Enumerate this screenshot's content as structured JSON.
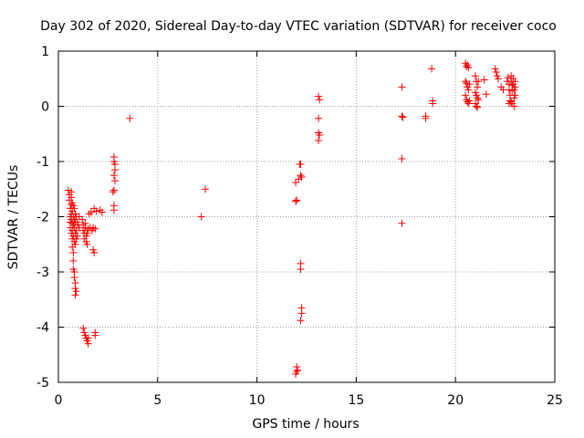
{
  "chart_data": {
    "type": "scatter",
    "title": "Day 302 of 2020, Sidereal Day-to-day VTEC variation (SDTVAR) for receiver coco",
    "xlabel": "GPS time / hours",
    "ylabel": "SDTVAR / TECUs",
    "xlim": [
      0,
      25
    ],
    "ylim": [
      -5,
      1
    ],
    "xticks": [
      0,
      5,
      10,
      15,
      20,
      25
    ],
    "yticks": [
      -5,
      -4,
      -3,
      -2,
      -1,
      0,
      1
    ],
    "grid": true,
    "marker": "+",
    "series": [
      {
        "name": "SDTVAR",
        "color": "#ff0000",
        "points": [
          [
            0.5,
            -1.52
          ],
          [
            0.55,
            -1.6
          ],
          [
            0.55,
            -1.7
          ],
          [
            0.6,
            -1.85
          ],
          [
            0.6,
            -2.0
          ],
          [
            0.6,
            -2.1
          ],
          [
            0.6,
            -2.2
          ],
          [
            0.65,
            -1.55
          ],
          [
            0.65,
            -1.65
          ],
          [
            0.65,
            -1.78
          ],
          [
            0.65,
            -1.95
          ],
          [
            0.65,
            -2.05
          ],
          [
            0.65,
            -2.3
          ],
          [
            0.7,
            -1.75
          ],
          [
            0.7,
            -1.9
          ],
          [
            0.7,
            -2.12
          ],
          [
            0.7,
            -2.25
          ],
          [
            0.7,
            -2.4
          ],
          [
            0.7,
            -2.55
          ],
          [
            0.75,
            -1.8
          ],
          [
            0.75,
            -2.0
          ],
          [
            0.75,
            -2.15
          ],
          [
            0.75,
            -2.35
          ],
          [
            0.75,
            -2.65
          ],
          [
            0.75,
            -2.8
          ],
          [
            0.75,
            -2.95
          ],
          [
            0.8,
            -1.85
          ],
          [
            0.8,
            -2.05
          ],
          [
            0.8,
            -2.2
          ],
          [
            0.8,
            -2.45
          ],
          [
            0.8,
            -3.0
          ],
          [
            0.8,
            -3.1
          ],
          [
            0.85,
            -1.95
          ],
          [
            0.85,
            -2.1
          ],
          [
            0.85,
            -2.3
          ],
          [
            0.85,
            -2.5
          ],
          [
            0.85,
            -3.2
          ],
          [
            0.85,
            -3.3
          ],
          [
            0.85,
            -3.42
          ],
          [
            0.9,
            -2.0
          ],
          [
            0.9,
            -2.25
          ],
          [
            0.9,
            -2.4
          ],
          [
            0.9,
            -3.35
          ],
          [
            0.95,
            -2.1
          ],
          [
            0.95,
            -2.35
          ],
          [
            1.0,
            -2.15
          ],
          [
            1.05,
            -2.2
          ],
          [
            1.05,
            -2.0
          ],
          [
            1.2,
            -2.05
          ],
          [
            1.25,
            -2.15
          ],
          [
            1.25,
            -2.25
          ],
          [
            1.3,
            -2.3
          ],
          [
            1.3,
            -2.4
          ],
          [
            1.35,
            -2.12
          ],
          [
            1.35,
            -2.2
          ],
          [
            1.4,
            -2.35
          ],
          [
            1.4,
            -2.45
          ],
          [
            1.45,
            -2.5
          ],
          [
            1.45,
            -2.3
          ],
          [
            1.5,
            -2.22
          ],
          [
            1.55,
            -1.95
          ],
          [
            1.6,
            -2.2
          ],
          [
            1.65,
            -1.92
          ],
          [
            1.7,
            -2.25
          ],
          [
            1.75,
            -2.2
          ],
          [
            1.75,
            -2.6
          ],
          [
            1.8,
            -2.65
          ],
          [
            1.8,
            -1.85
          ],
          [
            1.85,
            -2.22
          ],
          [
            1.9,
            -1.9
          ],
          [
            2.1,
            -1.88
          ],
          [
            2.2,
            -1.92
          ],
          [
            1.25,
            -4.02
          ],
          [
            1.3,
            -4.1
          ],
          [
            1.35,
            -4.15
          ],
          [
            1.4,
            -4.2
          ],
          [
            1.45,
            -4.25
          ],
          [
            1.5,
            -4.3
          ],
          [
            1.5,
            -4.2
          ],
          [
            1.85,
            -4.1
          ],
          [
            1.85,
            -4.15
          ],
          [
            2.8,
            -0.92
          ],
          [
            2.8,
            -1.0
          ],
          [
            2.85,
            -1.05
          ],
          [
            2.85,
            -1.15
          ],
          [
            2.8,
            -1.25
          ],
          [
            2.85,
            -1.35
          ],
          [
            2.75,
            -1.55
          ],
          [
            2.8,
            -1.52
          ],
          [
            2.8,
            -1.8
          ],
          [
            2.8,
            -1.88
          ],
          [
            3.6,
            -0.22
          ],
          [
            7.2,
            -2.0
          ],
          [
            7.4,
            -1.5
          ],
          [
            11.95,
            -1.38
          ],
          [
            12.0,
            -1.7
          ],
          [
            11.95,
            -1.72
          ],
          [
            12.0,
            -4.72
          ],
          [
            12.0,
            -4.8
          ],
          [
            11.95,
            -4.85
          ],
          [
            12.05,
            -4.78
          ],
          [
            12.1,
            -1.32
          ],
          [
            12.15,
            -1.05
          ],
          [
            12.2,
            -1.05
          ],
          [
            12.2,
            -1.25
          ],
          [
            12.25,
            -1.28
          ],
          [
            12.2,
            -2.85
          ],
          [
            12.2,
            -2.95
          ],
          [
            12.25,
            -3.65
          ],
          [
            12.25,
            -3.75
          ],
          [
            12.2,
            -3.88
          ],
          [
            13.1,
            0.18
          ],
          [
            13.15,
            0.12
          ],
          [
            13.1,
            -0.22
          ],
          [
            13.1,
            -0.48
          ],
          [
            13.15,
            -0.52
          ],
          [
            13.1,
            -0.62
          ],
          [
            17.3,
            0.35
          ],
          [
            17.3,
            -0.18
          ],
          [
            17.35,
            -0.2
          ],
          [
            17.3,
            -0.95
          ],
          [
            17.3,
            -2.12
          ],
          [
            18.5,
            -0.18
          ],
          [
            18.5,
            -0.22
          ],
          [
            18.8,
            0.68
          ],
          [
            18.85,
            0.1
          ],
          [
            18.85,
            0.05
          ],
          [
            20.5,
            0.78
          ],
          [
            20.55,
            0.72
          ],
          [
            20.6,
            0.75
          ],
          [
            20.65,
            0.7
          ],
          [
            20.5,
            0.45
          ],
          [
            20.55,
            0.42
          ],
          [
            20.6,
            0.35
          ],
          [
            20.65,
            0.3
          ],
          [
            20.5,
            0.2
          ],
          [
            20.55,
            0.12
          ],
          [
            20.6,
            0.08
          ],
          [
            20.65,
            0.05
          ],
          [
            20.7,
            0.4
          ],
          [
            20.7,
            0.1
          ],
          [
            21.0,
            0.55
          ],
          [
            21.05,
            0.45
          ],
          [
            21.1,
            0.35
          ],
          [
            21.0,
            0.25
          ],
          [
            21.05,
            0.2
          ],
          [
            21.1,
            0.15
          ],
          [
            21.0,
            0.05
          ],
          [
            21.05,
            0.0
          ],
          [
            21.1,
            -0.02
          ],
          [
            21.15,
            0.12
          ],
          [
            21.15,
            0.45
          ],
          [
            21.45,
            0.48
          ],
          [
            21.55,
            0.22
          ],
          [
            22.0,
            0.68
          ],
          [
            22.05,
            0.62
          ],
          [
            22.1,
            0.55
          ],
          [
            22.15,
            0.5
          ],
          [
            22.3,
            0.35
          ],
          [
            22.4,
            0.3
          ],
          [
            22.6,
            0.45
          ],
          [
            22.65,
            0.52
          ],
          [
            22.7,
            0.4
          ],
          [
            22.7,
            0.3
          ],
          [
            22.75,
            0.2
          ],
          [
            22.75,
            0.1
          ],
          [
            22.8,
            0.55
          ],
          [
            22.8,
            0.45
          ],
          [
            22.85,
            0.38
          ],
          [
            22.85,
            0.28
          ],
          [
            22.85,
            0.05
          ],
          [
            22.9,
            0.5
          ],
          [
            22.9,
            0.4
          ],
          [
            22.95,
            0.3
          ],
          [
            22.95,
            0.15
          ],
          [
            22.95,
            0.0
          ],
          [
            23.0,
            0.45
          ],
          [
            23.0,
            0.35
          ],
          [
            23.0,
            0.2
          ],
          [
            22.7,
            0.05
          ],
          [
            22.8,
            0.08
          ]
        ]
      }
    ]
  }
}
